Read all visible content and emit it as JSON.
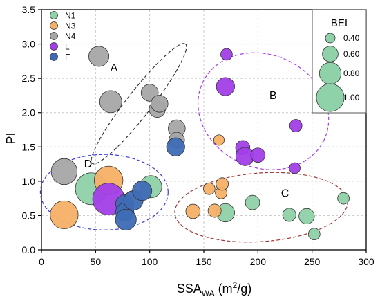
{
  "chart_data": {
    "type": "scatter",
    "xlabel": "SSA",
    "xlabel_subscript": "WA",
    "xlabel_unit_pre": " (m",
    "xlabel_unit_sup": "2",
    "xlabel_unit_post": "/g)",
    "ylabel": "PI",
    "xlim": [
      0,
      300
    ],
    "ylim": [
      0,
      3.5
    ],
    "x_ticks": [
      0,
      50,
      100,
      150,
      200,
      250,
      300
    ],
    "y_ticks": [
      0.0,
      0.5,
      1.0,
      1.5,
      2.0,
      2.5,
      3.0,
      3.5
    ],
    "grid": true,
    "legend_position": "top-left",
    "series": [
      {
        "name": "N1",
        "color": "#8fd1a8",
        "points": [
          {
            "x": 46,
            "y": 0.89,
            "bei": 0.9
          },
          {
            "x": 101,
            "y": 0.92,
            "bei": 0.65
          },
          {
            "x": 170,
            "y": 0.54,
            "bei": 0.55
          },
          {
            "x": 195,
            "y": 0.69,
            "bei": 0.45
          },
          {
            "x": 229,
            "y": 0.51,
            "bei": 0.42
          },
          {
            "x": 245,
            "y": 0.49,
            "bei": 0.48
          },
          {
            "x": 252,
            "y": 0.23,
            "bei": 0.38
          },
          {
            "x": 279,
            "y": 0.75,
            "bei": 0.38
          }
        ]
      },
      {
        "name": "N3",
        "color": "#f5b067",
        "points": [
          {
            "x": 21,
            "y": 0.51,
            "bei": 0.8
          },
          {
            "x": 62,
            "y": 1.01,
            "bei": 0.82
          },
          {
            "x": 140,
            "y": 0.56,
            "bei": 0.45
          },
          {
            "x": 155,
            "y": 0.89,
            "bei": 0.38
          },
          {
            "x": 160,
            "y": 0.57,
            "bei": 0.42
          },
          {
            "x": 164,
            "y": 1.6,
            "bei": 0.35
          },
          {
            "x": 166,
            "y": 0.83,
            "bei": 0.38
          },
          {
            "x": 167,
            "y": 0.96,
            "bei": 0.4
          }
        ]
      },
      {
        "name": "N4",
        "color": "#a6a6a6",
        "points": [
          {
            "x": 21,
            "y": 1.14,
            "bei": 0.75
          },
          {
            "x": 53,
            "y": 2.82,
            "bei": 0.6
          },
          {
            "x": 64,
            "y": 2.16,
            "bei": 0.65
          },
          {
            "x": 100,
            "y": 2.29,
            "bei": 0.52
          },
          {
            "x": 107,
            "y": 2.05,
            "bei": 0.5
          },
          {
            "x": 109,
            "y": 2.13,
            "bei": 0.52
          },
          {
            "x": 125,
            "y": 1.77,
            "bei": 0.52
          },
          {
            "x": 125,
            "y": 1.6,
            "bei": 0.48
          }
        ]
      },
      {
        "name": "L",
        "color": "#a23fe8",
        "points": [
          {
            "x": 62,
            "y": 0.74,
            "bei": 0.9
          },
          {
            "x": 171,
            "y": 2.85,
            "bei": 0.38
          },
          {
            "x": 170,
            "y": 2.38,
            "bei": 0.55
          },
          {
            "x": 186,
            "y": 1.49,
            "bei": 0.45
          },
          {
            "x": 188,
            "y": 1.36,
            "bei": 0.55
          },
          {
            "x": 200,
            "y": 1.38,
            "bei": 0.45
          },
          {
            "x": 235,
            "y": 1.81,
            "bei": 0.4
          },
          {
            "x": 234,
            "y": 1.19,
            "bei": 0.36
          }
        ]
      },
      {
        "name": "F",
        "color": "#3f6bb5",
        "points": [
          {
            "x": 77,
            "y": 0.67,
            "bei": 0.55
          },
          {
            "x": 77,
            "y": 0.55,
            "bei": 0.55
          },
          {
            "x": 78,
            "y": 0.44,
            "bei": 0.62
          },
          {
            "x": 85,
            "y": 0.72,
            "bei": 0.58
          },
          {
            "x": 93,
            "y": 0.86,
            "bei": 0.58
          },
          {
            "x": 124,
            "y": 1.5,
            "bei": 0.55
          }
        ]
      }
    ],
    "group_labels": [
      {
        "text": "A",
        "x": 67,
        "y": 2.6
      },
      {
        "text": "B",
        "x": 214,
        "y": 2.2
      },
      {
        "text": "C",
        "x": 225,
        "y": 0.77
      },
      {
        "text": "D",
        "x": 43,
        "y": 1.2
      }
    ],
    "group_ellipses": [
      {
        "name": "A",
        "cx": 90,
        "cy": 2.13,
        "rx": 70,
        "ry": 0.18,
        "rotate_deg": 52,
        "color": "#333333"
      },
      {
        "name": "B",
        "cx": 205,
        "cy": 2.02,
        "rx": 0.98,
        "ry": 52,
        "rotate_deg": -25,
        "color": "#a23fe8"
      },
      {
        "name": "C",
        "cx": 203,
        "cy": 0.62,
        "rx": 80,
        "ry": 0.5,
        "rotate_deg": 4,
        "color": "#a33838"
      },
      {
        "name": "D",
        "cx": 58,
        "cy": 0.84,
        "rx": 59,
        "ry": 0.55,
        "rotate_deg": 0,
        "color": "#3a3ae0"
      }
    ],
    "size_legend": {
      "title": "BEI",
      "items": [
        {
          "value": 0.4,
          "label": "0.40"
        },
        {
          "value": 0.6,
          "label": "0.60"
        },
        {
          "value": 0.8,
          "label": "0.80"
        },
        {
          "value": 1.0,
          "label": "1.00"
        }
      ],
      "color": "#8fd1a8"
    }
  }
}
